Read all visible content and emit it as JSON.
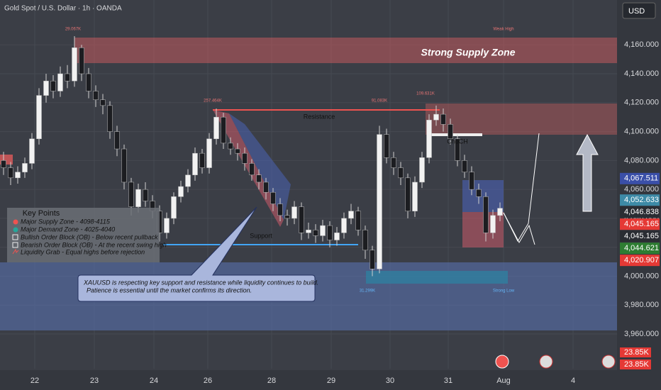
{
  "chart_data": {
    "type": "candlestick",
    "title": "Gold Spot / U.S. Dollar · 1h · OANDA",
    "currency": "USD",
    "xlim": [
      -0.5,
      86.5
    ],
    "ylim": [
      3936,
      4191
    ],
    "xticks": [
      {
        "value": 4.4,
        "label": "22"
      },
      {
        "value": 12.8,
        "label": "23"
      },
      {
        "value": 21.2,
        "label": "24"
      },
      {
        "value": 28.8,
        "label": "26"
      },
      {
        "value": 37.8,
        "label": "28"
      },
      {
        "value": 46.2,
        "label": "29"
      },
      {
        "value": 54.5,
        "label": "30"
      },
      {
        "value": 62.7,
        "label": "31"
      },
      {
        "value": 70.5,
        "label": "Aug"
      },
      {
        "value": 80.3,
        "label": "4"
      }
    ],
    "yticks": [
      {
        "value": 3960,
        "label": "3,960.000"
      },
      {
        "value": 3980,
        "label": "3,980.000"
      },
      {
        "value": 4000,
        "label": "4,000.000"
      },
      {
        "value": 4020,
        "label": "4,020.000"
      },
      {
        "value": 4040,
        "label": "4,040.000"
      },
      {
        "value": 4060,
        "label": "4,060.000"
      },
      {
        "value": 4080,
        "label": "4,080.000"
      },
      {
        "value": 4100,
        "label": "4,100.000"
      },
      {
        "value": 4120,
        "label": "4,120.000"
      },
      {
        "value": 4140,
        "label": "4,140.000"
      },
      {
        "value": 4160,
        "label": "4,160.000"
      }
    ],
    "grid": true,
    "up_color": "#f2f2f2",
    "down_color": "#1c1d21",
    "x": [
      0,
      1,
      2,
      3,
      4,
      5,
      6,
      7,
      8,
      9,
      10,
      11,
      12,
      13,
      14,
      15,
      16,
      17,
      18,
      19,
      20,
      21,
      22,
      23,
      24,
      25,
      26,
      27,
      28,
      29,
      30,
      31,
      32,
      33,
      34,
      35,
      36,
      37,
      38,
      39,
      40,
      41,
      42,
      43,
      44,
      45,
      46,
      47,
      48,
      49,
      50,
      51,
      52,
      53,
      54,
      55,
      56,
      57,
      58,
      59,
      60,
      61,
      62,
      63,
      64,
      65,
      66,
      67,
      68,
      69,
      70
    ],
    "open": [
      4080,
      4075,
      4068,
      4072,
      4078,
      4095,
      4125,
      4135,
      4128,
      4140,
      4135,
      4158,
      4140,
      4128,
      4122,
      4118,
      4100,
      4088,
      4065,
      4048,
      4060,
      4052,
      4045,
      4030,
      4040,
      4055,
      4062,
      4070,
      4085,
      4075,
      4095,
      4110,
      4092,
      4088,
      4085,
      4078,
      4070,
      4065,
      4058,
      4050,
      4042,
      4040,
      4048,
      4030,
      4032,
      4028,
      4035,
      4025,
      4030,
      4040,
      4045,
      4032,
      4018,
      4005,
      4098,
      4082,
      4075,
      4068,
      4045,
      4065,
      4082,
      4108,
      4112,
      4105,
      4095,
      4080,
      4072,
      4060,
      4055,
      4030,
      4042
    ],
    "high": [
      4086,
      4079,
      4076,
      4082,
      4099,
      4130,
      4140,
      4139,
      4145,
      4146,
      4166,
      4160,
      4144,
      4132,
      4126,
      4121,
      4104,
      4091,
      4068,
      4064,
      4065,
      4056,
      4049,
      4044,
      4058,
      4066,
      4074,
      4089,
      4088,
      4099,
      4116,
      4113,
      4096,
      4092,
      4089,
      4081,
      4074,
      4068,
      4061,
      4054,
      4046,
      4052,
      4051,
      4037,
      4036,
      4039,
      4038,
      4034,
      4044,
      4050,
      4048,
      4035,
      4021,
      4104,
      4102,
      4086,
      4079,
      4071,
      4069,
      4086,
      4112,
      4118,
      4116,
      4109,
      4098,
      4084,
      4076,
      4064,
      4058,
      4046,
      4051
    ],
    "low": [
      4070,
      4063,
      4064,
      4068,
      4074,
      4091,
      4120,
      4123,
      4124,
      4130,
      4131,
      4135,
      4123,
      4117,
      4112,
      4095,
      4083,
      4060,
      4042,
      4044,
      4048,
      4040,
      4024,
      4026,
      4036,
      4051,
      4058,
      4066,
      4071,
      4071,
      4091,
      4088,
      4084,
      4080,
      4073,
      4066,
      4060,
      4053,
      4045,
      4038,
      4035,
      4036,
      4025,
      4026,
      4023,
      4024,
      4020,
      4021,
      4026,
      4036,
      4028,
      4012,
      4000,
      4002,
      4078,
      4070,
      4063,
      4040,
      4041,
      4061,
      4078,
      4104,
      4100,
      4091,
      4076,
      4068,
      4056,
      4050,
      4024,
      4026,
      4038
    ],
    "close": [
      4075,
      4068,
      4072,
      4078,
      4095,
      4125,
      4135,
      4128,
      4140,
      4135,
      4158,
      4140,
      4128,
      4122,
      4118,
      4100,
      4088,
      4065,
      4048,
      4060,
      4052,
      4045,
      4030,
      4040,
      4055,
      4062,
      4070,
      4085,
      4075,
      4095,
      4110,
      4092,
      4088,
      4085,
      4078,
      4070,
      4065,
      4058,
      4050,
      4042,
      4040,
      4048,
      4030,
      4032,
      4028,
      4035,
      4025,
      4030,
      4040,
      4045,
      4032,
      4018,
      4005,
      4098,
      4082,
      4075,
      4068,
      4045,
      4065,
      4082,
      4108,
      4112,
      4105,
      4095,
      4080,
      4072,
      4060,
      4055,
      4030,
      4042,
      4047
    ],
    "price_labels": [
      {
        "value": 4067.511,
        "label": "4,067.511",
        "color": "#3a4fa8"
      },
      {
        "value": 4052.633,
        "label": "4,052.633",
        "color": "#3d8aa6"
      },
      {
        "value": 4046.838,
        "label": "4,046.838",
        "color": "#2a2d33"
      },
      {
        "value": 4045.165,
        "label": "4,045.165",
        "color": "#e53935"
      },
      {
        "value": 4045.165,
        "label": "4,045.165",
        "color": "#2a2d33"
      },
      {
        "value": 4044.621,
        "label": "4,044.621",
        "color": "#2e7d32"
      },
      {
        "value": 4020.907,
        "label": "4,020.907",
        "color": "#e53935"
      }
    ],
    "volume_labels": [
      "23.85K",
      "23.85K"
    ],
    "annotations": {
      "supply": "Strong Supply Zone",
      "resistance": "Resistance",
      "support": "Support",
      "choch": "ChoCH",
      "weak_high": "Weak High",
      "strong_low": "Strong Low",
      "v1": "29.067K",
      "v2": "257.464K",
      "v3": "91.083K",
      "v4": "109.631K",
      "v5": "31.299K"
    },
    "key_points": {
      "title": "Key Points",
      "items": [
        "Major Supply Zone - 4098-4115",
        "Major Demand Zone - 4025-4040",
        "Bullish Order Block (OB) - Below recent pullback",
        "Bearish Order Block (OB) - At the recent swing high",
        "Liquidity Grab - Equal highs before rejection"
      ]
    },
    "callout": [
      "XAUUSD is respecting key support and resistance while liquidity continues to build.",
      "Patience is essential until the market confirms its direction."
    ]
  }
}
